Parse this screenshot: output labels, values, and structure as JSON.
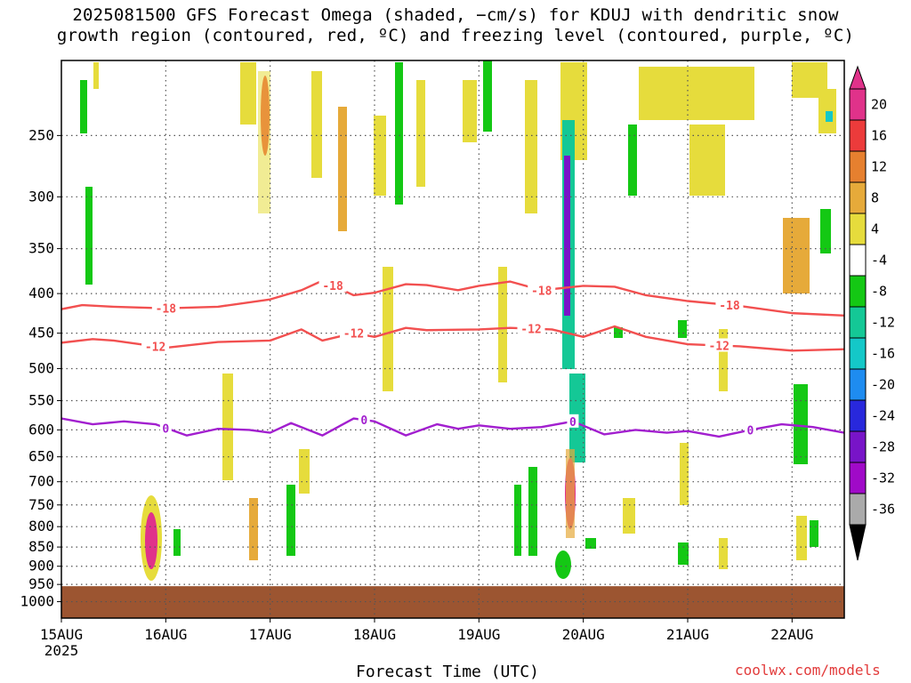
{
  "title": {
    "line1": "2025081500 GFS Forecast Omega (shaded, −cm/s) for KDUJ with dendritic snow",
    "line2": "growth region (contoured, red, ºC) and freezing level (contoured, purple, ºC)"
  },
  "credit": "coolwx.com/models",
  "colors": {
    "ground": "#9c5531",
    "dgz_contour": "#f25050",
    "freezing_contour": "#a21fcf",
    "grid": "#555555"
  },
  "chart_data": {
    "type": "heatmap",
    "xlabel": "Forecast Time (UTC)",
    "ylabel": "",
    "x_ticks": [
      "15AUG",
      "16AUG",
      "17AUG",
      "18AUG",
      "19AUG",
      "20AUG",
      "21AUG",
      "22AUG"
    ],
    "x_tick_sub": [
      "2025",
      "",
      "",
      "",
      "",
      "",
      "",
      ""
    ],
    "x_range_days": [
      0,
      7.5
    ],
    "y_ticks": [
      250,
      300,
      350,
      400,
      450,
      500,
      550,
      600,
      650,
      700,
      750,
      800,
      850,
      900,
      950,
      1000
    ],
    "y_range_hpa": [
      200,
      1050
    ],
    "y_scale": "log-pressure (inverted)",
    "grid": "dotted",
    "surface_pressure_hpa": 955,
    "colorbar": {
      "labels": [
        "20",
        "16",
        "12",
        "8",
        "4",
        "-4",
        "-8",
        "-12",
        "-16",
        "-20",
        "-24",
        "-28",
        "-32",
        "-36"
      ],
      "colors": [
        "#e0328a",
        "#ec3b3b",
        "#e6802f",
        "#e6aa3a",
        "#e6dc3c",
        "#ffffff",
        "#14c814",
        "#14c896",
        "#14c8c8",
        "#1e8cf0",
        "#2828dc",
        "#7814c8",
        "#a00ac8",
        "#aaaaaa"
      ],
      "extend_low_color": "#000000"
    },
    "contours": [
      {
        "label": "-18",
        "color": "dgz",
        "x": [
          0,
          0.2,
          0.5,
          1.0,
          1.5,
          2.0,
          2.3,
          2.5,
          2.8,
          3.0,
          3.3,
          3.5,
          3.8,
          4.0,
          4.3,
          4.6,
          5.0,
          5.3,
          5.6,
          6.0,
          6.5,
          7.0,
          7.5
        ],
        "y": [
          419,
          414,
          416,
          418,
          416,
          407,
          396,
          385,
          402,
          399,
          389,
          390,
          396,
          391,
          386,
          396,
          391,
          392,
          402,
          409,
          415,
          424,
          427
        ],
        "label_x": [
          1.0,
          2.6,
          4.6,
          6.4
        ]
      },
      {
        "label": "-12",
        "color": "dgz",
        "x": [
          0,
          0.3,
          0.5,
          1.0,
          1.5,
          2.0,
          2.3,
          2.5,
          2.8,
          3.0,
          3.3,
          3.5,
          4.0,
          4.3,
          4.7,
          5.0,
          5.3,
          5.6,
          6.0,
          6.5,
          7.0,
          7.5
        ],
        "y": [
          463,
          458,
          460,
          470,
          462,
          460,
          445,
          460,
          450,
          455,
          443,
          446,
          445,
          443,
          445,
          455,
          441,
          455,
          465,
          468,
          474,
          472
        ],
        "label_x": [
          0.9,
          2.8,
          4.5,
          6.3
        ]
      },
      {
        "label": "0",
        "color": "freezing",
        "x": [
          0,
          0.3,
          0.6,
          0.9,
          1.2,
          1.5,
          1.8,
          2.0,
          2.2,
          2.5,
          2.8,
          3.0,
          3.3,
          3.6,
          3.8,
          4.0,
          4.3,
          4.6,
          4.9,
          5.2,
          5.5,
          5.8,
          6.0,
          6.3,
          6.6,
          6.9,
          7.2,
          7.5
        ],
        "y": [
          580,
          590,
          585,
          590,
          610,
          598,
          600,
          605,
          588,
          610,
          580,
          585,
          610,
          590,
          598,
          592,
          598,
          595,
          585,
          608,
          600,
          605,
          602,
          612,
          600,
          590,
          595,
          605
        ],
        "label_x": [
          1.0,
          2.9,
          4.9,
          6.6
        ]
      }
    ]
  }
}
